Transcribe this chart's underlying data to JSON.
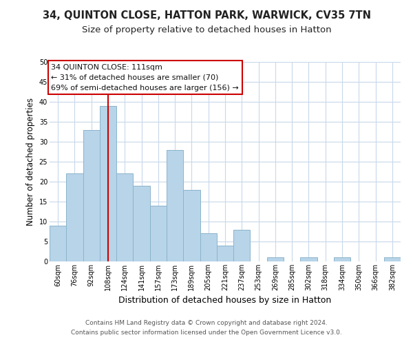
{
  "title": "34, QUINTON CLOSE, HATTON PARK, WARWICK, CV35 7TN",
  "subtitle": "Size of property relative to detached houses in Hatton",
  "xlabel": "Distribution of detached houses by size in Hatton",
  "ylabel": "Number of detached properties",
  "bar_labels": [
    "60sqm",
    "76sqm",
    "92sqm",
    "108sqm",
    "124sqm",
    "141sqm",
    "157sqm",
    "173sqm",
    "189sqm",
    "205sqm",
    "221sqm",
    "237sqm",
    "253sqm",
    "269sqm",
    "285sqm",
    "302sqm",
    "318sqm",
    "334sqm",
    "350sqm",
    "366sqm",
    "382sqm"
  ],
  "bar_values": [
    9,
    22,
    33,
    39,
    22,
    19,
    14,
    28,
    18,
    7,
    4,
    8,
    0,
    1,
    0,
    1,
    0,
    1,
    0,
    0,
    1
  ],
  "bar_color": "#b8d4e8",
  "bar_edge_color": "#8ab4cc",
  "vline_x": 3,
  "vline_color": "#cc0000",
  "annotation_line1": "34 QUINTON CLOSE: 111sqm",
  "annotation_line2": "← 31% of detached houses are smaller (70)",
  "annotation_line3": "69% of semi-detached houses are larger (156) →",
  "annotation_box_color": "#ffffff",
  "annotation_box_edge": "#cc0000",
  "ylim": [
    0,
    50
  ],
  "yticks": [
    0,
    5,
    10,
    15,
    20,
    25,
    30,
    35,
    40,
    45,
    50
  ],
  "footer_line1": "Contains HM Land Registry data © Crown copyright and database right 2024.",
  "footer_line2": "Contains public sector information licensed under the Open Government Licence v3.0.",
  "title_fontsize": 10.5,
  "subtitle_fontsize": 9.5,
  "xlabel_fontsize": 9,
  "ylabel_fontsize": 8.5,
  "tick_fontsize": 7,
  "annotation_fontsize": 8,
  "footer_fontsize": 6.5,
  "grid_color": "#c8d8ea"
}
